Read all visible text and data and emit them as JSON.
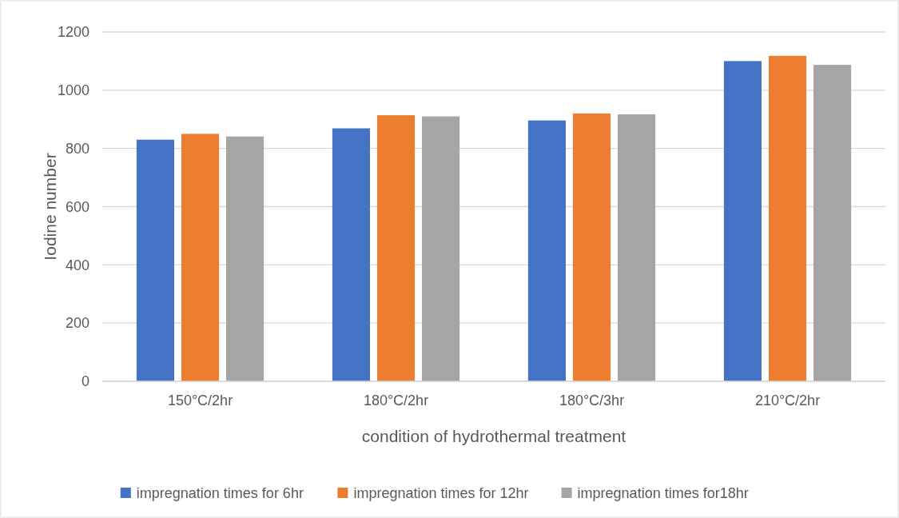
{
  "chart_data": {
    "type": "bar",
    "xlabel": "condition of hydrothermal treatment",
    "ylabel": "Iodine number",
    "categories": [
      "150°C/2hr",
      "180°C/2hr",
      "180°C/3hr",
      "210°C/2hr"
    ],
    "series": [
      {
        "name": "impregnation times for 6hr",
        "color": "#4472c4",
        "values": [
          830,
          869,
          896,
          1100
        ]
      },
      {
        "name": "impregnation times for 12hr",
        "color": "#ed7d31",
        "values": [
          850,
          914,
          920,
          1118
        ]
      },
      {
        "name": "impregnation times for18hr",
        "color": "#a5a5a5",
        "values": [
          841,
          910,
          917,
          1087
        ]
      }
    ],
    "ylim": [
      0,
      1200
    ],
    "yticks": [
      0,
      200,
      400,
      600,
      800,
      1000,
      1200
    ],
    "grid": "y",
    "legend": "bottom"
  }
}
